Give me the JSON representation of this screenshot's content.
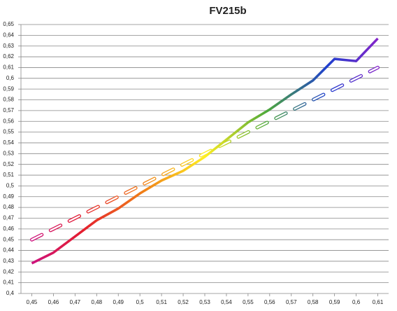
{
  "chart_data": {
    "type": "line",
    "title": "FV215b",
    "x": [
      0.45,
      0.46,
      0.47,
      0.48,
      0.49,
      0.5,
      0.51,
      0.52,
      0.53,
      0.54,
      0.55,
      0.56,
      0.57,
      0.58,
      0.59,
      0.6,
      0.61
    ],
    "series": [
      {
        "style": "solid",
        "values": [
          0.428,
          0.438,
          0.453,
          0.468,
          0.479,
          0.493,
          0.505,
          0.514,
          0.527,
          0.543,
          0.559,
          0.571,
          0.585,
          0.598,
          0.618,
          0.616,
          0.637
        ]
      },
      {
        "style": "dashed",
        "values": [
          0.45,
          0.46,
          0.47,
          0.48,
          0.49,
          0.5,
          0.51,
          0.52,
          0.53,
          0.54,
          0.55,
          0.56,
          0.57,
          0.58,
          0.59,
          0.6,
          0.61
        ]
      }
    ],
    "gradient": [
      "#c8108f",
      "#e41e2e",
      "#f08018",
      "#ffee22",
      "#4faa3a",
      "#1f3fcf",
      "#9a1fc8"
    ],
    "grid": true,
    "xlim": [
      0.445,
      0.615
    ],
    "xticks": [
      {
        "value": 0.45,
        "label": "0,45"
      },
      {
        "value": 0.46,
        "label": "0,46"
      },
      {
        "value": 0.47,
        "label": "0,47"
      },
      {
        "value": 0.48,
        "label": "0,48"
      },
      {
        "value": 0.49,
        "label": "0,49"
      },
      {
        "value": 0.5,
        "label": "0,5"
      },
      {
        "value": 0.51,
        "label": "0,51"
      },
      {
        "value": 0.52,
        "label": "0,52"
      },
      {
        "value": 0.53,
        "label": "0,53"
      },
      {
        "value": 0.54,
        "label": "0,54"
      },
      {
        "value": 0.55,
        "label": "0,55"
      },
      {
        "value": 0.56,
        "label": "0,56"
      },
      {
        "value": 0.57,
        "label": "0,57"
      },
      {
        "value": 0.58,
        "label": "0,58"
      },
      {
        "value": 0.59,
        "label": "0,59"
      },
      {
        "value": 0.6,
        "label": "0,6"
      },
      {
        "value": 0.61,
        "label": "0,61"
      }
    ],
    "ylim": [
      0.4,
      0.65
    ],
    "yticks": [
      {
        "value": 0.4,
        "label": "0,4"
      },
      {
        "value": 0.41,
        "label": "0,41"
      },
      {
        "value": 0.42,
        "label": "0,42"
      },
      {
        "value": 0.43,
        "label": "0,43"
      },
      {
        "value": 0.44,
        "label": "0,44"
      },
      {
        "value": 0.45,
        "label": "0,45"
      },
      {
        "value": 0.46,
        "label": "0,46"
      },
      {
        "value": 0.47,
        "label": "0,47"
      },
      {
        "value": 0.48,
        "label": "0,48"
      },
      {
        "value": 0.49,
        "label": "0,49"
      },
      {
        "value": 0.5,
        "label": "0,5"
      },
      {
        "value": 0.51,
        "label": "0,51"
      },
      {
        "value": 0.52,
        "label": "0,52"
      },
      {
        "value": 0.53,
        "label": "0,53"
      },
      {
        "value": 0.54,
        "label": "0,54"
      },
      {
        "value": 0.55,
        "label": "0,55"
      },
      {
        "value": 0.56,
        "label": "0,56"
      },
      {
        "value": 0.57,
        "label": "0,57"
      },
      {
        "value": 0.58,
        "label": "0,58"
      },
      {
        "value": 0.59,
        "label": "0,59"
      },
      {
        "value": 0.6,
        "label": "0,6"
      },
      {
        "value": 0.61,
        "label": "0,61"
      },
      {
        "value": 0.62,
        "label": "0,62"
      },
      {
        "value": 0.63,
        "label": "0,63"
      },
      {
        "value": 0.64,
        "label": "0,64"
      },
      {
        "value": 0.65,
        "label": "0,65"
      }
    ]
  }
}
